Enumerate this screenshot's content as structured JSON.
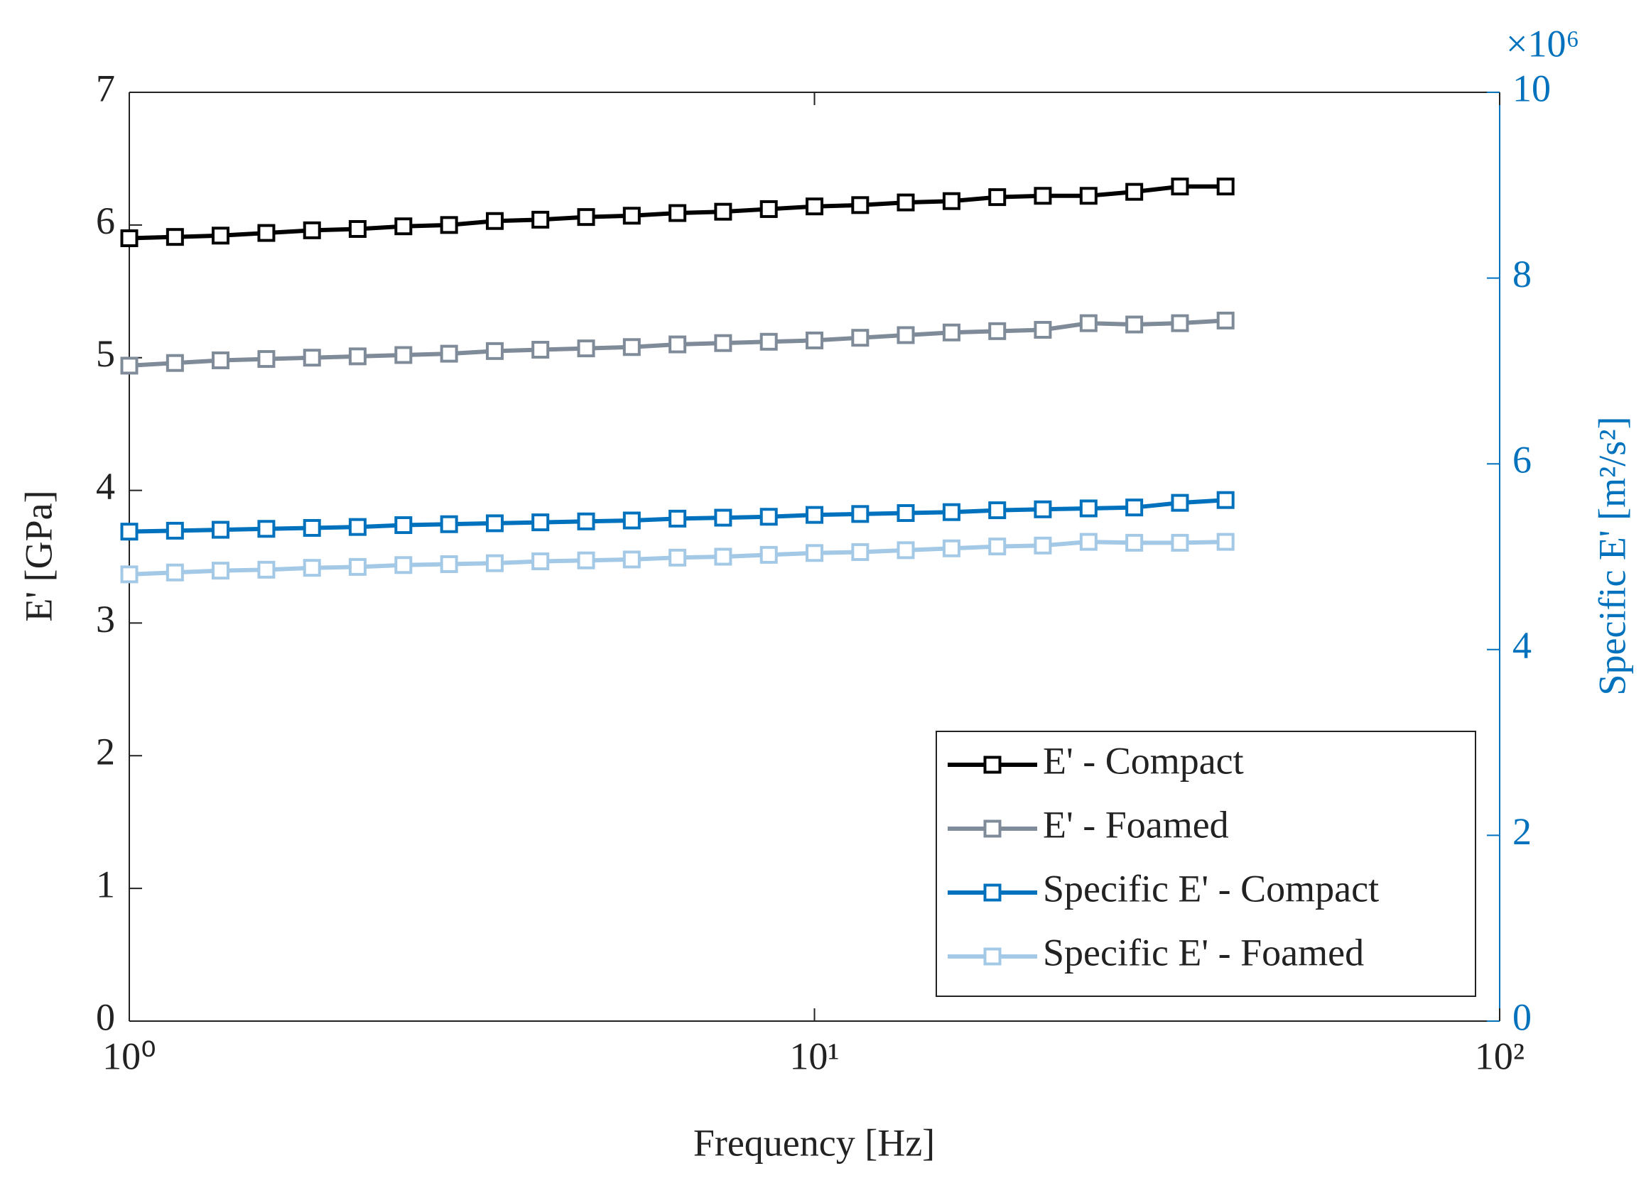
{
  "chart_data": {
    "type": "line",
    "xlabel": "Frequency [Hz]",
    "ylabel": "E' [GPa]",
    "y2label": "Specific E' [m²/s²]",
    "y2_multiplier": "×10⁶",
    "x": [
      1,
      1.166,
      1.359,
      1.585,
      1.848,
      2.154,
      2.512,
      2.929,
      3.415,
      3.981,
      4.642,
      5.412,
      6.31,
      7.356,
      8.577,
      10,
      11.66,
      13.59,
      15.85,
      18.48,
      21.54,
      25.12,
      29.29,
      34.15,
      39.81
    ],
    "xscale": "log",
    "xlim": [
      1,
      100
    ],
    "xticks": [
      {
        "value": 1,
        "label": "10⁰"
      },
      {
        "value": 10,
        "label": "10¹"
      },
      {
        "value": 100,
        "label": "10²"
      }
    ],
    "ylim": [
      0,
      7
    ],
    "yticks": [
      0,
      1,
      2,
      3,
      4,
      5,
      6,
      7
    ],
    "y2lim": [
      0,
      10
    ],
    "y2ticks": [
      0,
      2,
      4,
      6,
      8,
      10
    ],
    "y2color": "#0072bd",
    "legend": "southeast",
    "marker": "square",
    "series": [
      {
        "name": "E' - Compact",
        "color": "#000000",
        "values": [
          5.9,
          5.91,
          5.92,
          5.94,
          5.96,
          5.97,
          5.99,
          6.0,
          6.03,
          6.04,
          6.06,
          6.07,
          6.09,
          6.1,
          6.12,
          6.14,
          6.15,
          6.17,
          6.18,
          6.21,
          6.22,
          6.22,
          6.25,
          6.29,
          6.29
        ]
      },
      {
        "name": "E' - Foamed",
        "color": "#7f8b99",
        "values": [
          4.94,
          4.96,
          4.98,
          4.99,
          5.0,
          5.01,
          5.02,
          5.03,
          5.05,
          5.06,
          5.07,
          5.08,
          5.1,
          5.11,
          5.12,
          5.13,
          5.15,
          5.17,
          5.19,
          5.2,
          5.21,
          5.26,
          5.25,
          5.26,
          5.28
        ]
      },
      {
        "name": "Specific E' - Compact",
        "color": "#0072bd",
        "axis": "y2",
        "values": [
          5.27,
          5.28,
          5.29,
          5.3,
          5.31,
          5.32,
          5.34,
          5.35,
          5.36,
          5.37,
          5.38,
          5.39,
          5.41,
          5.42,
          5.43,
          5.45,
          5.46,
          5.47,
          5.48,
          5.5,
          5.51,
          5.52,
          5.53,
          5.58,
          5.61
        ]
      },
      {
        "name": "Specific E' - Foamed",
        "color": "#a3c9e6",
        "axis": "y2",
        "values": [
          4.81,
          4.83,
          4.85,
          4.86,
          4.88,
          4.89,
          4.91,
          4.92,
          4.93,
          4.95,
          4.96,
          4.97,
          4.99,
          5.0,
          5.02,
          5.04,
          5.05,
          5.07,
          5.09,
          5.11,
          5.12,
          5.16,
          5.15,
          5.15,
          5.16
        ]
      }
    ]
  }
}
